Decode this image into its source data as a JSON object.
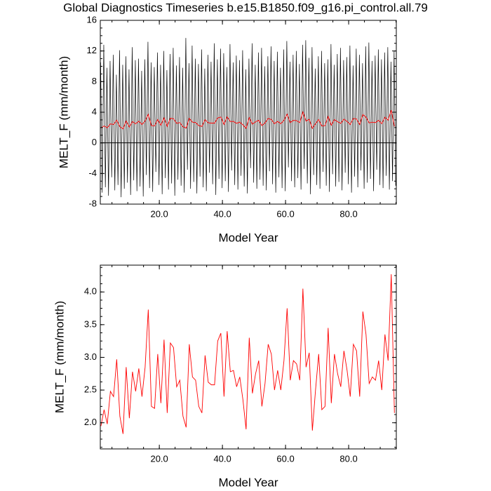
{
  "chart_data": [
    {
      "type": "line",
      "title": "Global Diagnostics Timeseries b.e15.B1850.f09_g16.pi_control.all.79",
      "x_label": "Model Year",
      "y_label": "MELT_F (mm/month)",
      "xlim": [
        1.3,
        95.1
      ],
      "ylim": [
        -8,
        16
      ],
      "xticks": [
        {
          "value": 20,
          "label": "20.0"
        },
        {
          "value": 40,
          "label": "40.0"
        },
        {
          "value": 60,
          "label": "60.0"
        },
        {
          "value": 80,
          "label": "80.0"
        }
      ],
      "yticks": [
        -8,
        -4,
        0,
        4,
        8,
        12,
        16
      ],
      "zero_line": true,
      "series": [
        {
          "color": "#000000",
          "x": [
            1.4,
            1.9,
            2.4,
            2.9,
            3.4,
            3.9,
            4.4,
            4.9,
            5.4,
            5.9,
            6.4,
            6.9,
            7.4,
            7.9,
            8.4,
            8.9,
            9.4,
            9.9,
            10.4,
            10.9,
            11.4,
            11.9,
            12.4,
            12.9,
            13.4,
            13.9,
            14.4,
            14.9,
            15.4,
            15.9,
            16.4,
            16.9,
            17.4,
            17.9,
            18.4,
            18.9,
            19.4,
            19.9,
            20.4,
            20.9,
            21.4,
            21.9,
            22.4,
            22.9,
            23.4,
            23.9,
            24.4,
            24.9,
            25.4,
            25.9,
            26.4,
            26.9,
            27.4,
            27.9,
            28.4,
            28.9,
            29.4,
            29.9,
            30.4,
            30.9,
            31.4,
            31.9,
            32.4,
            32.9,
            33.4,
            33.9,
            34.4,
            34.9,
            35.4,
            35.9,
            36.4,
            36.9,
            37.4,
            37.9,
            38.4,
            38.9,
            39.4,
            39.9,
            40.4,
            40.9,
            41.4,
            41.9,
            42.4,
            42.9,
            43.4,
            43.9,
            44.4,
            44.9,
            45.4,
            45.9,
            46.4,
            46.9,
            47.4,
            47.9,
            48.4,
            48.9,
            49.4,
            49.9,
            50.4,
            50.9,
            51.4,
            51.9,
            52.4,
            52.9,
            53.4,
            53.9,
            54.4,
            54.9,
            55.4,
            55.9,
            56.4,
            56.9,
            57.4,
            57.9,
            58.4,
            58.9,
            59.4,
            59.9,
            60.4,
            60.9,
            61.4,
            61.9,
            62.4,
            62.9,
            63.4,
            63.9,
            64.4,
            64.9,
            65.4,
            65.9,
            66.4,
            66.9,
            67.4,
            67.9,
            68.4,
            68.9,
            69.4,
            69.9,
            70.4,
            70.9,
            71.4,
            71.9,
            72.4,
            72.9,
            73.4,
            73.9,
            74.4,
            74.9,
            75.4,
            75.9,
            76.4,
            76.9,
            77.4,
            77.9,
            78.4,
            78.9,
            79.4,
            79.9,
            80.4,
            80.9,
            81.4,
            81.9,
            82.4,
            82.9,
            83.4,
            83.9,
            84.4,
            84.9,
            85.4,
            85.9,
            86.4,
            86.9,
            87.4,
            87.9,
            88.4,
            88.9,
            89.4,
            89.9,
            90.4,
            90.9,
            91.4,
            91.9,
            92.4,
            92.9,
            93.4,
            93.9,
            94.4,
            94.9
          ],
          "values": [
            10.5,
            -6.5,
            12.8,
            -5.8,
            9.8,
            -6.9,
            10.7,
            -4.5,
            11.5,
            -6.2,
            8.9,
            -5.5,
            12.1,
            -7.1,
            10.2,
            -6.0,
            11.3,
            -5.2,
            9.6,
            -6.8,
            12.5,
            -4.9,
            10.8,
            -6.3,
            11.0,
            -5.7,
            9.4,
            -7.0,
            10.9,
            -4.2,
            13.2,
            -5.9,
            10.5,
            -6.4,
            9.9,
            -3.8,
            11.8,
            -5.5,
            10.2,
            -6.7,
            12.0,
            -4.6,
            9.5,
            -6.1,
            11.6,
            -5.3,
            12.4,
            -6.9,
            10.1,
            -4.8,
            11.2,
            -5.6,
            9.8,
            -6.5,
            13.7,
            -3.5,
            10.4,
            -6.0,
            12.7,
            -5.1,
            11.0,
            -6.6,
            10.3,
            -4.4,
            12.2,
            -5.8,
            9.7,
            -6.3,
            11.5,
            -3.9,
            10.6,
            -5.4,
            13.0,
            -6.8,
            10.9,
            -4.7,
            12.3,
            -5.9,
            11.7,
            -5.0,
            9.9,
            -6.4,
            12.9,
            -3.6,
            10.5,
            -5.5,
            11.4,
            -6.1,
            10.8,
            -4.3,
            12.1,
            -5.7,
            9.6,
            -6.6,
            11.0,
            -3.3,
            13.0,
            -5.2,
            10.2,
            -6.0,
            11.8,
            -4.8,
            12.4,
            -5.6,
            10.0,
            -6.2,
            11.3,
            -3.7,
            12.6,
            -5.4,
            10.7,
            -6.5,
            11.9,
            -4.5,
            9.8,
            -5.9,
            12.2,
            -6.3,
            13.3,
            -3.2,
            10.6,
            -5.0,
            11.5,
            -5.8,
            12.0,
            -4.6,
            10.3,
            -6.1,
            12.8,
            -3.4,
            13.4,
            -5.3,
            11.1,
            -6.7,
            12.5,
            -4.2,
            9.7,
            -5.5,
            11.3,
            -6.0,
            12.0,
            -3.8,
            10.4,
            -5.6,
            10.9,
            -6.4,
            12.9,
            -4.1,
            10.2,
            -5.7,
            11.6,
            -5.1,
            12.4,
            -6.2,
            10.8,
            -3.9,
            11.2,
            -5.4,
            12.7,
            -6.5,
            10.1,
            -4.4,
            12.3,
            -5.8,
            11.5,
            -3.6,
            10.4,
            -6.0,
            12.6,
            -5.2,
            13.1,
            -4.7,
            10.7,
            -6.3,
            11.4,
            -3.5,
            12.2,
            -5.5,
            10.9,
            -5.9,
            11.8,
            -4.3,
            12.5,
            -6.1,
            10.6,
            -5.0,
            12.0,
            -5.6
          ]
        },
        {
          "color": "#ff0000",
          "x": [
            1.5,
            2.5,
            3.5,
            4.5,
            5.5,
            6.5,
            7.5,
            8.5,
            9.5,
            10.5,
            11.5,
            12.5,
            13.5,
            14.5,
            15.5,
            16.5,
            17.5,
            18.5,
            19.5,
            20.5,
            21.5,
            22.5,
            23.5,
            24.5,
            25.5,
            26.5,
            27.5,
            28.5,
            29.5,
            30.5,
            31.5,
            32.5,
            33.5,
            34.5,
            35.5,
            36.5,
            37.5,
            38.5,
            39.5,
            40.5,
            41.5,
            42.5,
            43.5,
            44.5,
            45.5,
            46.5,
            47.5,
            48.5,
            49.5,
            50.5,
            51.5,
            52.5,
            53.5,
            54.5,
            55.5,
            56.5,
            57.5,
            58.5,
            59.5,
            60.5,
            61.5,
            62.5,
            63.5,
            64.5,
            65.5,
            66.5,
            67.5,
            68.5,
            69.5,
            70.5,
            71.5,
            72.5,
            73.5,
            74.5,
            75.5,
            76.5,
            77.5,
            78.5,
            79.5,
            80.5,
            81.5,
            82.5,
            83.5,
            84.5,
            85.5,
            86.5,
            87.5,
            88.5,
            89.5,
            90.5,
            91.5,
            92.5,
            93.5,
            94.5
          ],
          "values": [
            1.95,
            2.2,
            1.98,
            2.48,
            2.4,
            2.97,
            2.1,
            1.83,
            2.85,
            2.07,
            2.78,
            2.48,
            2.83,
            2.4,
            2.85,
            3.73,
            2.25,
            2.22,
            3.05,
            2.3,
            3.27,
            2.15,
            3.22,
            3.15,
            2.55,
            2.65,
            2.1,
            1.93,
            3.2,
            2.7,
            2.65,
            2.25,
            2.15,
            3.03,
            2.62,
            2.58,
            2.58,
            3.25,
            3.37,
            2.4,
            3.4,
            2.78,
            2.8,
            2.55,
            2.7,
            2.35,
            1.9,
            3.3,
            2.45,
            2.75,
            2.95,
            2.25,
            2.6,
            3.2,
            3.05,
            2.5,
            2.8,
            2.5,
            2.95,
            3.75,
            2.65,
            2.95,
            2.9,
            2.65,
            4.05,
            2.85,
            3.07,
            1.88,
            2.5,
            3.05,
            2.2,
            2.25,
            3.45,
            2.3,
            3.05,
            2.75,
            2.55,
            3.1,
            2.8,
            2.4,
            3.2,
            3.1,
            2.4,
            3.7,
            3.35,
            2.6,
            2.7,
            2.65,
            2.95,
            2.5,
            3.35,
            2.95,
            4.27,
            2.15
          ]
        }
      ]
    },
    {
      "type": "line",
      "x_label": "Model Year",
      "y_label": "MELT_F (mm/month)",
      "xlim": [
        1.3,
        95.1
      ],
      "ylim": [
        1.6,
        4.41
      ],
      "xticks": [
        {
          "value": 20,
          "label": "20.0"
        },
        {
          "value": 40,
          "label": "40.0"
        },
        {
          "value": 60,
          "label": "60.0"
        },
        {
          "value": 80,
          "label": "80.0"
        }
      ],
      "yticks": [
        {
          "value": 2,
          "label": "2.0"
        },
        {
          "value": 2.5,
          "label": "2.5"
        },
        {
          "value": 3,
          "label": "3.0"
        },
        {
          "value": 3.5,
          "label": "3.5"
        },
        {
          "value": 4,
          "label": "4.0"
        }
      ],
      "series": [
        {
          "color": "#ff0000",
          "x": [
            1.5,
            2.5,
            3.5,
            4.5,
            5.5,
            6.5,
            7.5,
            8.5,
            9.5,
            10.5,
            11.5,
            12.5,
            13.5,
            14.5,
            15.5,
            16.5,
            17.5,
            18.5,
            19.5,
            20.5,
            21.5,
            22.5,
            23.5,
            24.5,
            25.5,
            26.5,
            27.5,
            28.5,
            29.5,
            30.5,
            31.5,
            32.5,
            33.5,
            34.5,
            35.5,
            36.5,
            37.5,
            38.5,
            39.5,
            40.5,
            41.5,
            42.5,
            43.5,
            44.5,
            45.5,
            46.5,
            47.5,
            48.5,
            49.5,
            50.5,
            51.5,
            52.5,
            53.5,
            54.5,
            55.5,
            56.5,
            57.5,
            58.5,
            59.5,
            60.5,
            61.5,
            62.5,
            63.5,
            64.5,
            65.5,
            66.5,
            67.5,
            68.5,
            69.5,
            70.5,
            71.5,
            72.5,
            73.5,
            74.5,
            75.5,
            76.5,
            77.5,
            78.5,
            79.5,
            80.5,
            81.5,
            82.5,
            83.5,
            84.5,
            85.5,
            86.5,
            87.5,
            88.5,
            89.5,
            90.5,
            91.5,
            92.5,
            93.5,
            94.5
          ],
          "values": [
            1.95,
            2.2,
            1.98,
            2.48,
            2.4,
            2.97,
            2.1,
            1.83,
            2.85,
            2.07,
            2.78,
            2.48,
            2.83,
            2.4,
            2.85,
            3.73,
            2.25,
            2.22,
            3.05,
            2.3,
            3.27,
            2.15,
            3.22,
            3.15,
            2.55,
            2.65,
            2.1,
            1.93,
            3.2,
            2.7,
            2.65,
            2.25,
            2.15,
            3.03,
            2.62,
            2.58,
            2.58,
            3.25,
            3.37,
            2.4,
            3.4,
            2.78,
            2.8,
            2.55,
            2.7,
            2.35,
            1.9,
            3.3,
            2.45,
            2.75,
            2.95,
            2.25,
            2.6,
            3.2,
            3.05,
            2.5,
            2.8,
            2.5,
            2.95,
            3.75,
            2.65,
            2.95,
            2.9,
            2.65,
            4.05,
            2.85,
            3.07,
            1.88,
            2.5,
            3.05,
            2.2,
            2.25,
            3.45,
            2.3,
            3.05,
            2.75,
            2.55,
            3.1,
            2.8,
            2.4,
            3.2,
            3.1,
            2.4,
            3.7,
            3.35,
            2.6,
            2.7,
            2.65,
            2.95,
            2.5,
            3.35,
            2.95,
            4.27,
            2.15
          ]
        }
      ]
    }
  ]
}
